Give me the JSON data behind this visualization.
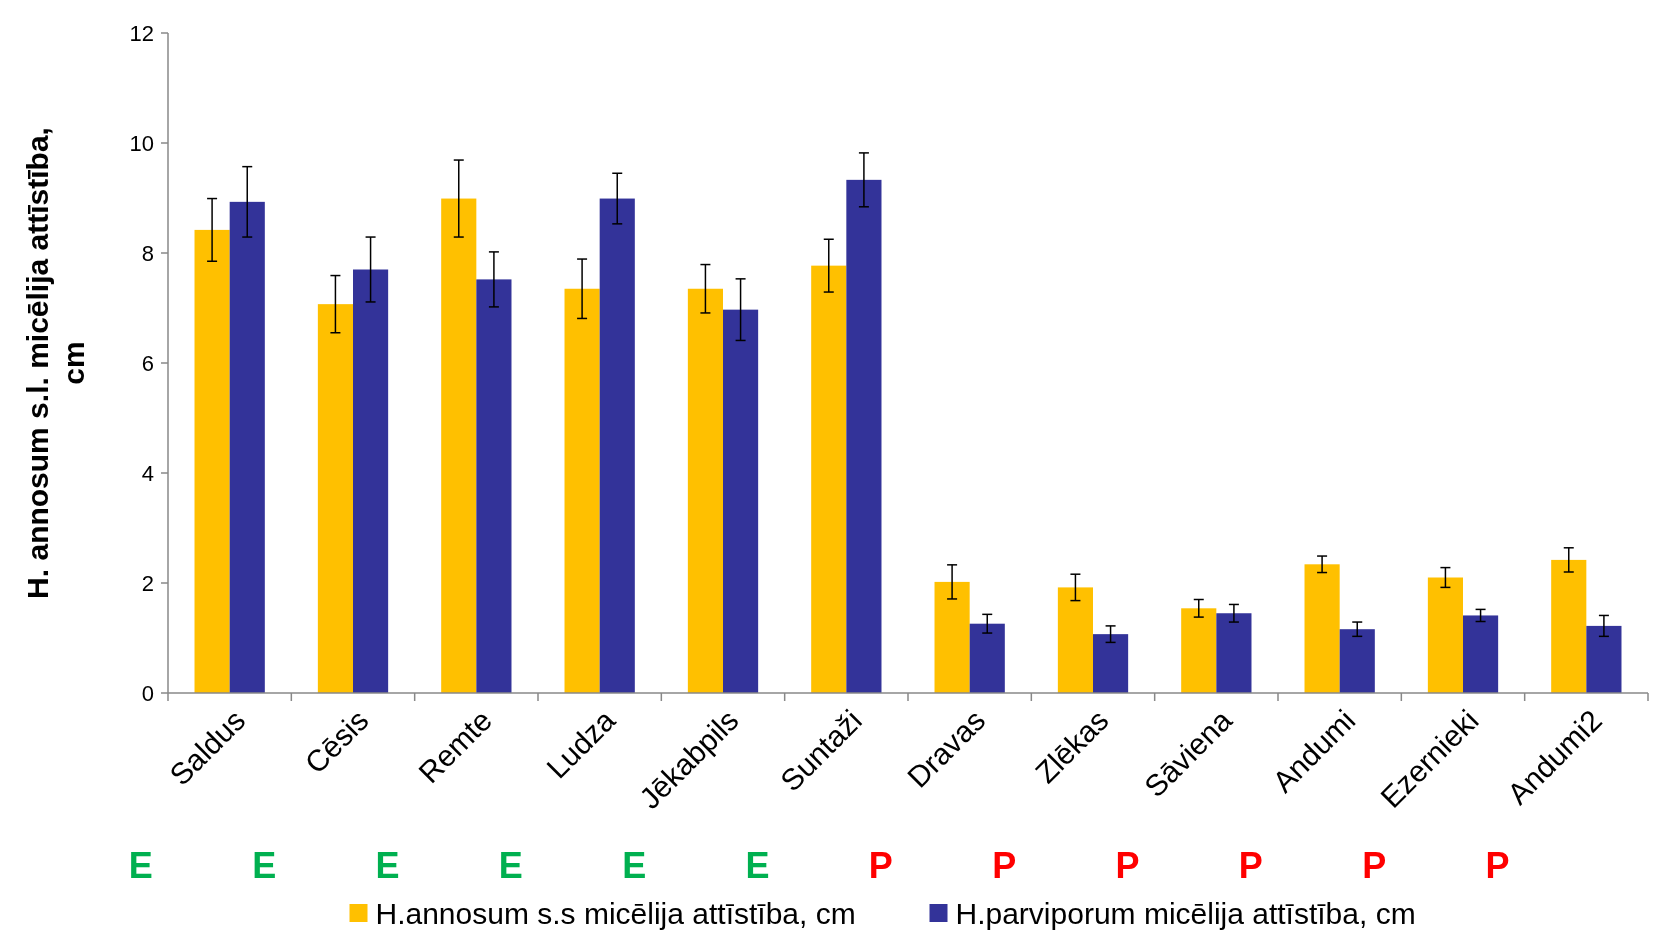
{
  "chart_data": {
    "type": "bar",
    "ylabel": "H. annosum s.l. micēlija attīstība, cm",
    "categories": [
      "Saldus",
      "Cēsis",
      "Remte",
      "Ludza",
      "Jēkabpils",
      "Suntaži",
      "Dravas",
      "Zlēkas",
      "Sāviena",
      "Andumi",
      "Ezernieki",
      "Andumi2"
    ],
    "series": [
      {
        "name": "H.annosum s.s micēlija attīstība, cm",
        "color": "#ffc000",
        "values": [
          8.42,
          7.07,
          8.99,
          7.35,
          7.35,
          7.77,
          2.02,
          1.92,
          1.54,
          2.34,
          2.1,
          2.42
        ],
        "errors": [
          0.57,
          0.52,
          0.7,
          0.54,
          0.44,
          0.48,
          0.31,
          0.24,
          0.16,
          0.15,
          0.18,
          0.22
        ]
      },
      {
        "name": "H.parviporum micēlija attīstība, cm",
        "color": "#333399",
        "values": [
          8.93,
          7.7,
          7.52,
          8.99,
          6.97,
          9.33,
          1.26,
          1.07,
          1.45,
          1.16,
          1.41,
          1.22
        ],
        "errors": [
          0.64,
          0.59,
          0.5,
          0.46,
          0.56,
          0.49,
          0.17,
          0.15,
          0.16,
          0.13,
          0.11,
          0.19
        ]
      }
    ],
    "ylim": [
      0,
      12
    ],
    "yticks": [
      0,
      2,
      4,
      6,
      8,
      10,
      12
    ],
    "grid": false,
    "legend": "bottom",
    "annotations": [
      "E",
      "E",
      "E",
      "E",
      "E",
      "E",
      "P",
      "P",
      "P",
      "P",
      "P",
      "P"
    ]
  }
}
